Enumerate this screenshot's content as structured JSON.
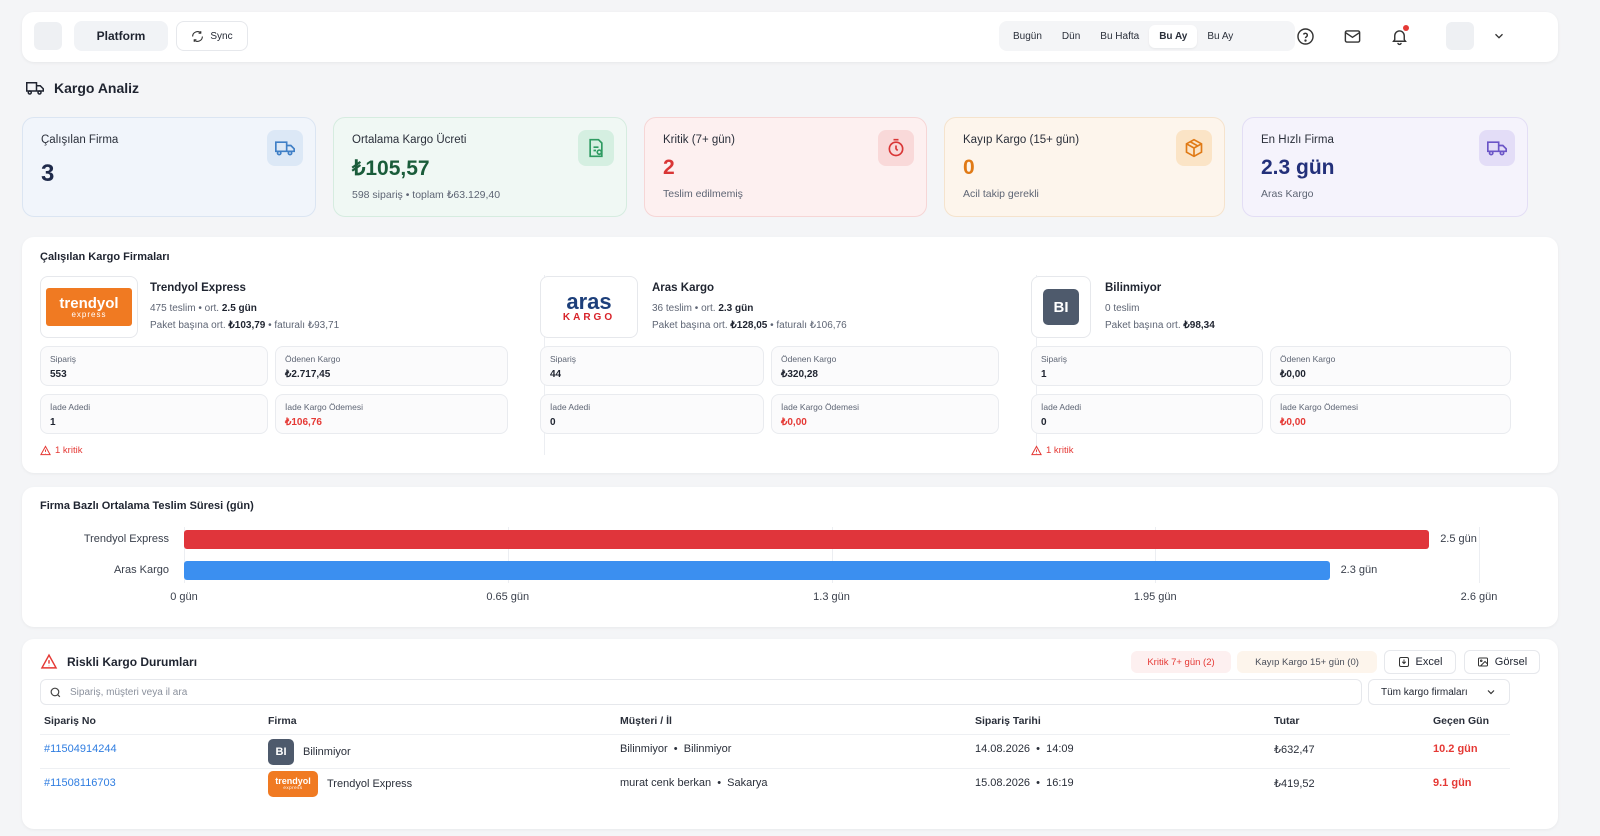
{
  "topbar": {
    "platform_label": "Platform",
    "sync_label": "Sync",
    "periods": [
      {
        "label": "Bugün",
        "active": false
      },
      {
        "label": "Dün",
        "active": false
      },
      {
        "label": "Bu Hafta",
        "active": false
      },
      {
        "label": "Bu Ay",
        "active": true
      },
      {
        "label": "Bu Ay",
        "active": false
      }
    ],
    "icons": [
      "help-circle-icon",
      "mail-icon",
      "bell-icon",
      "chevron-down-icon"
    ]
  },
  "page": {
    "title": "Kargo Analiz"
  },
  "stats": [
    {
      "label": "Çalışılan Firma",
      "value": "3",
      "sub": "",
      "icon": "truck-icon",
      "color": "#1f2a4a",
      "bg": "#f1f5fb",
      "border": "#dbe5f2",
      "icon_bg": "#dce8f6",
      "icon_color": "#3f7fc6"
    },
    {
      "label": "Ortalama Kargo Ücreti",
      "value": "₺105,57",
      "sub": "598 sipariş • toplam ₺63.129,40",
      "icon": "receipt-icon",
      "color": "#1a5c3a",
      "bg": "#f0f8f4",
      "border": "#d6ece0",
      "icon_bg": "#d5efe1",
      "icon_color": "#2f9b62"
    },
    {
      "label": "Kritik (7+ gün)",
      "value": "2",
      "sub": "Teslim edilmemiş",
      "icon": "timer-icon",
      "color": "#d93636",
      "bg": "#fdf0f0",
      "border": "#f6d6d6",
      "icon_bg": "#f9d9d9",
      "icon_color": "#d93636"
    },
    {
      "label": "Kayıp Kargo (15+ gün)",
      "value": "0",
      "sub": "Acil takip gerekli",
      "icon": "package-icon",
      "color": "#e07a16",
      "bg": "#fdf5ec",
      "border": "#f5e3cd",
      "icon_bg": "#fbe4c6",
      "icon_color": "#e07a16"
    },
    {
      "label": "En Hızlı Firma",
      "value": "2.3 gün",
      "sub": "Aras Kargo",
      "icon": "truck-icon",
      "color": "#23307a",
      "bg": "#f5f3fc",
      "border": "#e3def5",
      "icon_bg": "#e3ddf7",
      "icon_color": "#6b55c7"
    }
  ],
  "firms_section": {
    "title": "Çalışılan Kargo Firmaları",
    "firms": [
      {
        "name": "Trendyol Express",
        "logo": {
          "line1": "trendyol",
          "line2": "express"
        },
        "deliveries": "475 teslim",
        "avg_prefix": "ort.",
        "avg": "2.5 gün",
        "per_pkg_label": "Paket başına ort.",
        "per_pkg": "₺103,79",
        "invoiced": "faturalı ₺93,71",
        "orders_label": "Sipariş",
        "orders": "553",
        "paid_label": "Ödenen Kargo",
        "paid": "₺2.717,45",
        "returns_label": "İade Adedi",
        "returns": "1",
        "return_pay_label": "İade Kargo Ödemesi",
        "return_pay": "₺106,76",
        "critical": "1 kritik"
      },
      {
        "name": "Aras Kargo",
        "logo": {
          "line1": "aras",
          "line2": "KARGO"
        },
        "deliveries": "36 teslim",
        "avg_prefix": "ort.",
        "avg": "2.3 gün",
        "per_pkg_label": "Paket başına ort.",
        "per_pkg": "₺128,05",
        "invoiced": "faturalı ₺106,76",
        "orders_label": "Sipariş",
        "orders": "44",
        "paid_label": "Ödenen Kargo",
        "paid": "₺320,28",
        "returns_label": "İade Adedi",
        "returns": "0",
        "return_pay_label": "İade Kargo Ödemesi",
        "return_pay": "₺0,00",
        "critical": ""
      },
      {
        "name": "Bilinmiyor",
        "logo": {
          "line1": "BI",
          "line2": ""
        },
        "deliveries": "0 teslim",
        "avg_prefix": "",
        "avg": "",
        "per_pkg_label": "Paket başına ort.",
        "per_pkg": "₺98,34",
        "invoiced": "",
        "orders_label": "Sipariş",
        "orders": "1",
        "paid_label": "Ödenen Kargo",
        "paid": "₺0,00",
        "returns_label": "İade Adedi",
        "returns": "0",
        "return_pay_label": "İade Kargo Ödemesi",
        "return_pay": "₺0,00",
        "critical": "1 kritik"
      }
    ]
  },
  "chart_data": {
    "type": "bar",
    "orientation": "horizontal",
    "title": "Firma Bazlı Ortalama Teslim Süresi (gün)",
    "categories": [
      "Trendyol Express",
      "Aras Kargo"
    ],
    "values": [
      2.5,
      2.3
    ],
    "value_labels": [
      "2.5 gün",
      "2.3 gün"
    ],
    "colors": [
      "#e0353b",
      "#3b8ff0"
    ],
    "xlim": [
      0,
      2.6
    ],
    "ticks": [
      0,
      0.65,
      1.3,
      1.95,
      2.6
    ],
    "tick_labels": [
      "0 gün",
      "0.65 gün",
      "1.3 gün",
      "1.95 gün",
      "2.6 gün"
    ],
    "grid": true
  },
  "risk": {
    "title": "Riskli Kargo Durumları",
    "chip_critical": "Kritik 7+ gün (2)",
    "chip_lost": "Kayıp Kargo 15+ gün (0)",
    "excel_label": "Excel",
    "image_label": "Görsel",
    "search_placeholder": "Sipariş, müşteri veya il ara",
    "filter_label": "Tüm kargo firmaları",
    "columns": [
      "Sipariş No",
      "Firma",
      "Müşteri / İl",
      "Sipariş Tarihi",
      "Tutar",
      "Geçen Gün"
    ],
    "rows": [
      {
        "order": "#11504914244",
        "firm": "Bilinmiyor",
        "firm_logo": "BI",
        "customer": "Bilinmiyor  •  Bilinmiyor",
        "date": "14.08.2026  •  14:09",
        "amount": "₺632,47",
        "days": "10.2 gün"
      },
      {
        "order": "#11508116703",
        "firm": "Trendyol Express",
        "firm_logo": "trendyol",
        "customer": "murat cenk berkan  •  Sakarya",
        "date": "15.08.2026  •  16:19",
        "amount": "₺419,52",
        "days": "9.1 gün"
      }
    ]
  }
}
